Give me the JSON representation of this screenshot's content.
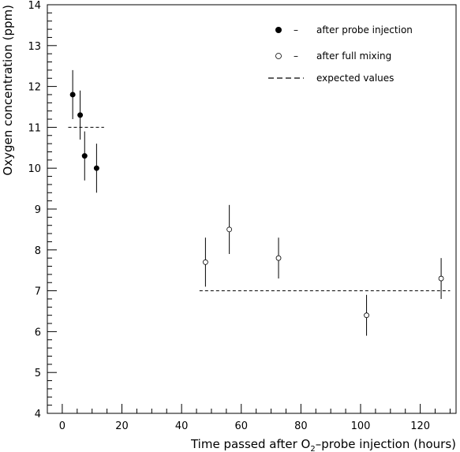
{
  "chart_data": {
    "type": "scatter",
    "xlabel_parts": [
      "Time passed after O",
      "2",
      "–probe injection (hours)"
    ],
    "ylabel": "Oxygen concentration (ppm)",
    "xlim": [
      -5,
      132
    ],
    "ylim": [
      4,
      14
    ],
    "xticks": [
      0,
      20,
      40,
      60,
      80,
      100,
      120
    ],
    "yticks": [
      4,
      5,
      6,
      7,
      8,
      9,
      10,
      11,
      12,
      13,
      14
    ],
    "grid": false,
    "legend_position": "top-right",
    "series": [
      {
        "name": "after probe injection",
        "marker": "filled-circle",
        "points": [
          {
            "x": 3.5,
            "y": 11.8,
            "err": 0.6
          },
          {
            "x": 6.0,
            "y": 11.3,
            "err": 0.6
          },
          {
            "x": 7.5,
            "y": 10.3,
            "err": 0.6
          },
          {
            "x": 11.5,
            "y": 10.0,
            "err": 0.6
          }
        ]
      },
      {
        "name": "after full mixing",
        "marker": "open-circle",
        "points": [
          {
            "x": 48.0,
            "y": 7.7,
            "err": 0.6
          },
          {
            "x": 56.0,
            "y": 8.5,
            "err": 0.6
          },
          {
            "x": 72.5,
            "y": 7.8,
            "err": 0.5
          },
          {
            "x": 102.0,
            "y": 6.4,
            "err": 0.5
          },
          {
            "x": 127.0,
            "y": 7.3,
            "err": 0.5
          }
        ]
      }
    ],
    "reference_lines": [
      {
        "name": "expected values",
        "style": "dashed",
        "x": [
          2,
          14
        ],
        "y": 11
      },
      {
        "name": "expected values",
        "style": "dashed",
        "x": [
          46,
          130
        ],
        "y": 7
      }
    ],
    "legend": [
      {
        "marker": "filled-circle",
        "dash": "–",
        "label": "after probe injection"
      },
      {
        "marker": "open-circle",
        "dash": "–",
        "label": "after full mixing"
      },
      {
        "marker": "dashed-line",
        "dash": "",
        "label": "expected values"
      }
    ]
  }
}
